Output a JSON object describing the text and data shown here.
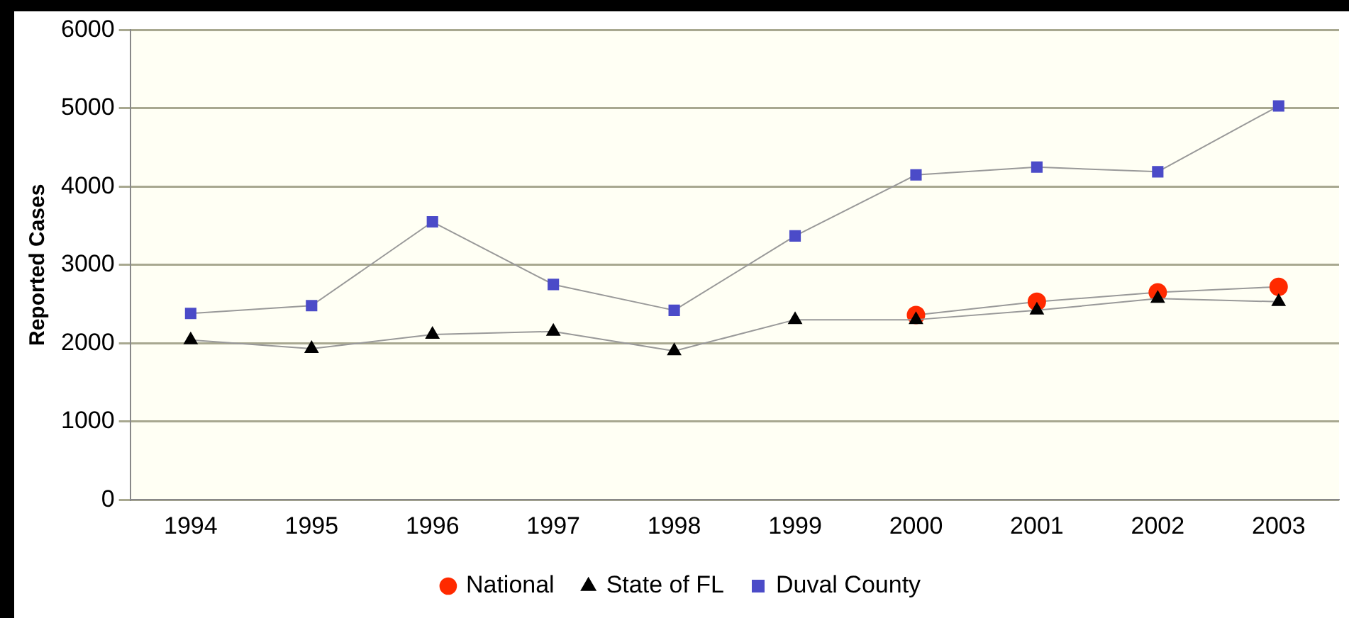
{
  "chart_data": {
    "type": "line",
    "ylabel": "Reported Cases",
    "categories": [
      "1994",
      "1995",
      "1996",
      "1997",
      "1998",
      "1999",
      "2000",
      "2001",
      "2002",
      "2003"
    ],
    "series": [
      {
        "name": "National",
        "color": "#ff2a00",
        "marker": "circle",
        "values": [
          null,
          null,
          null,
          null,
          null,
          null,
          2360,
          2530,
          2650,
          2720
        ]
      },
      {
        "name": "State of FL",
        "color": "#000000",
        "marker": "triangle",
        "values": [
          2040,
          1930,
          2110,
          2150,
          1900,
          2300,
          2300,
          2420,
          2570,
          2530
        ]
      },
      {
        "name": "Duval County",
        "color": "#4b4bc8",
        "marker": "square",
        "values": [
          2380,
          2480,
          3550,
          2750,
          2420,
          3370,
          4150,
          4250,
          4190,
          5030
        ]
      }
    ],
    "ylim": [
      0,
      6000
    ],
    "yticks": [
      0,
      1000,
      2000,
      3000,
      4000,
      5000,
      6000
    ],
    "grid": "y",
    "legend": "bottom"
  }
}
